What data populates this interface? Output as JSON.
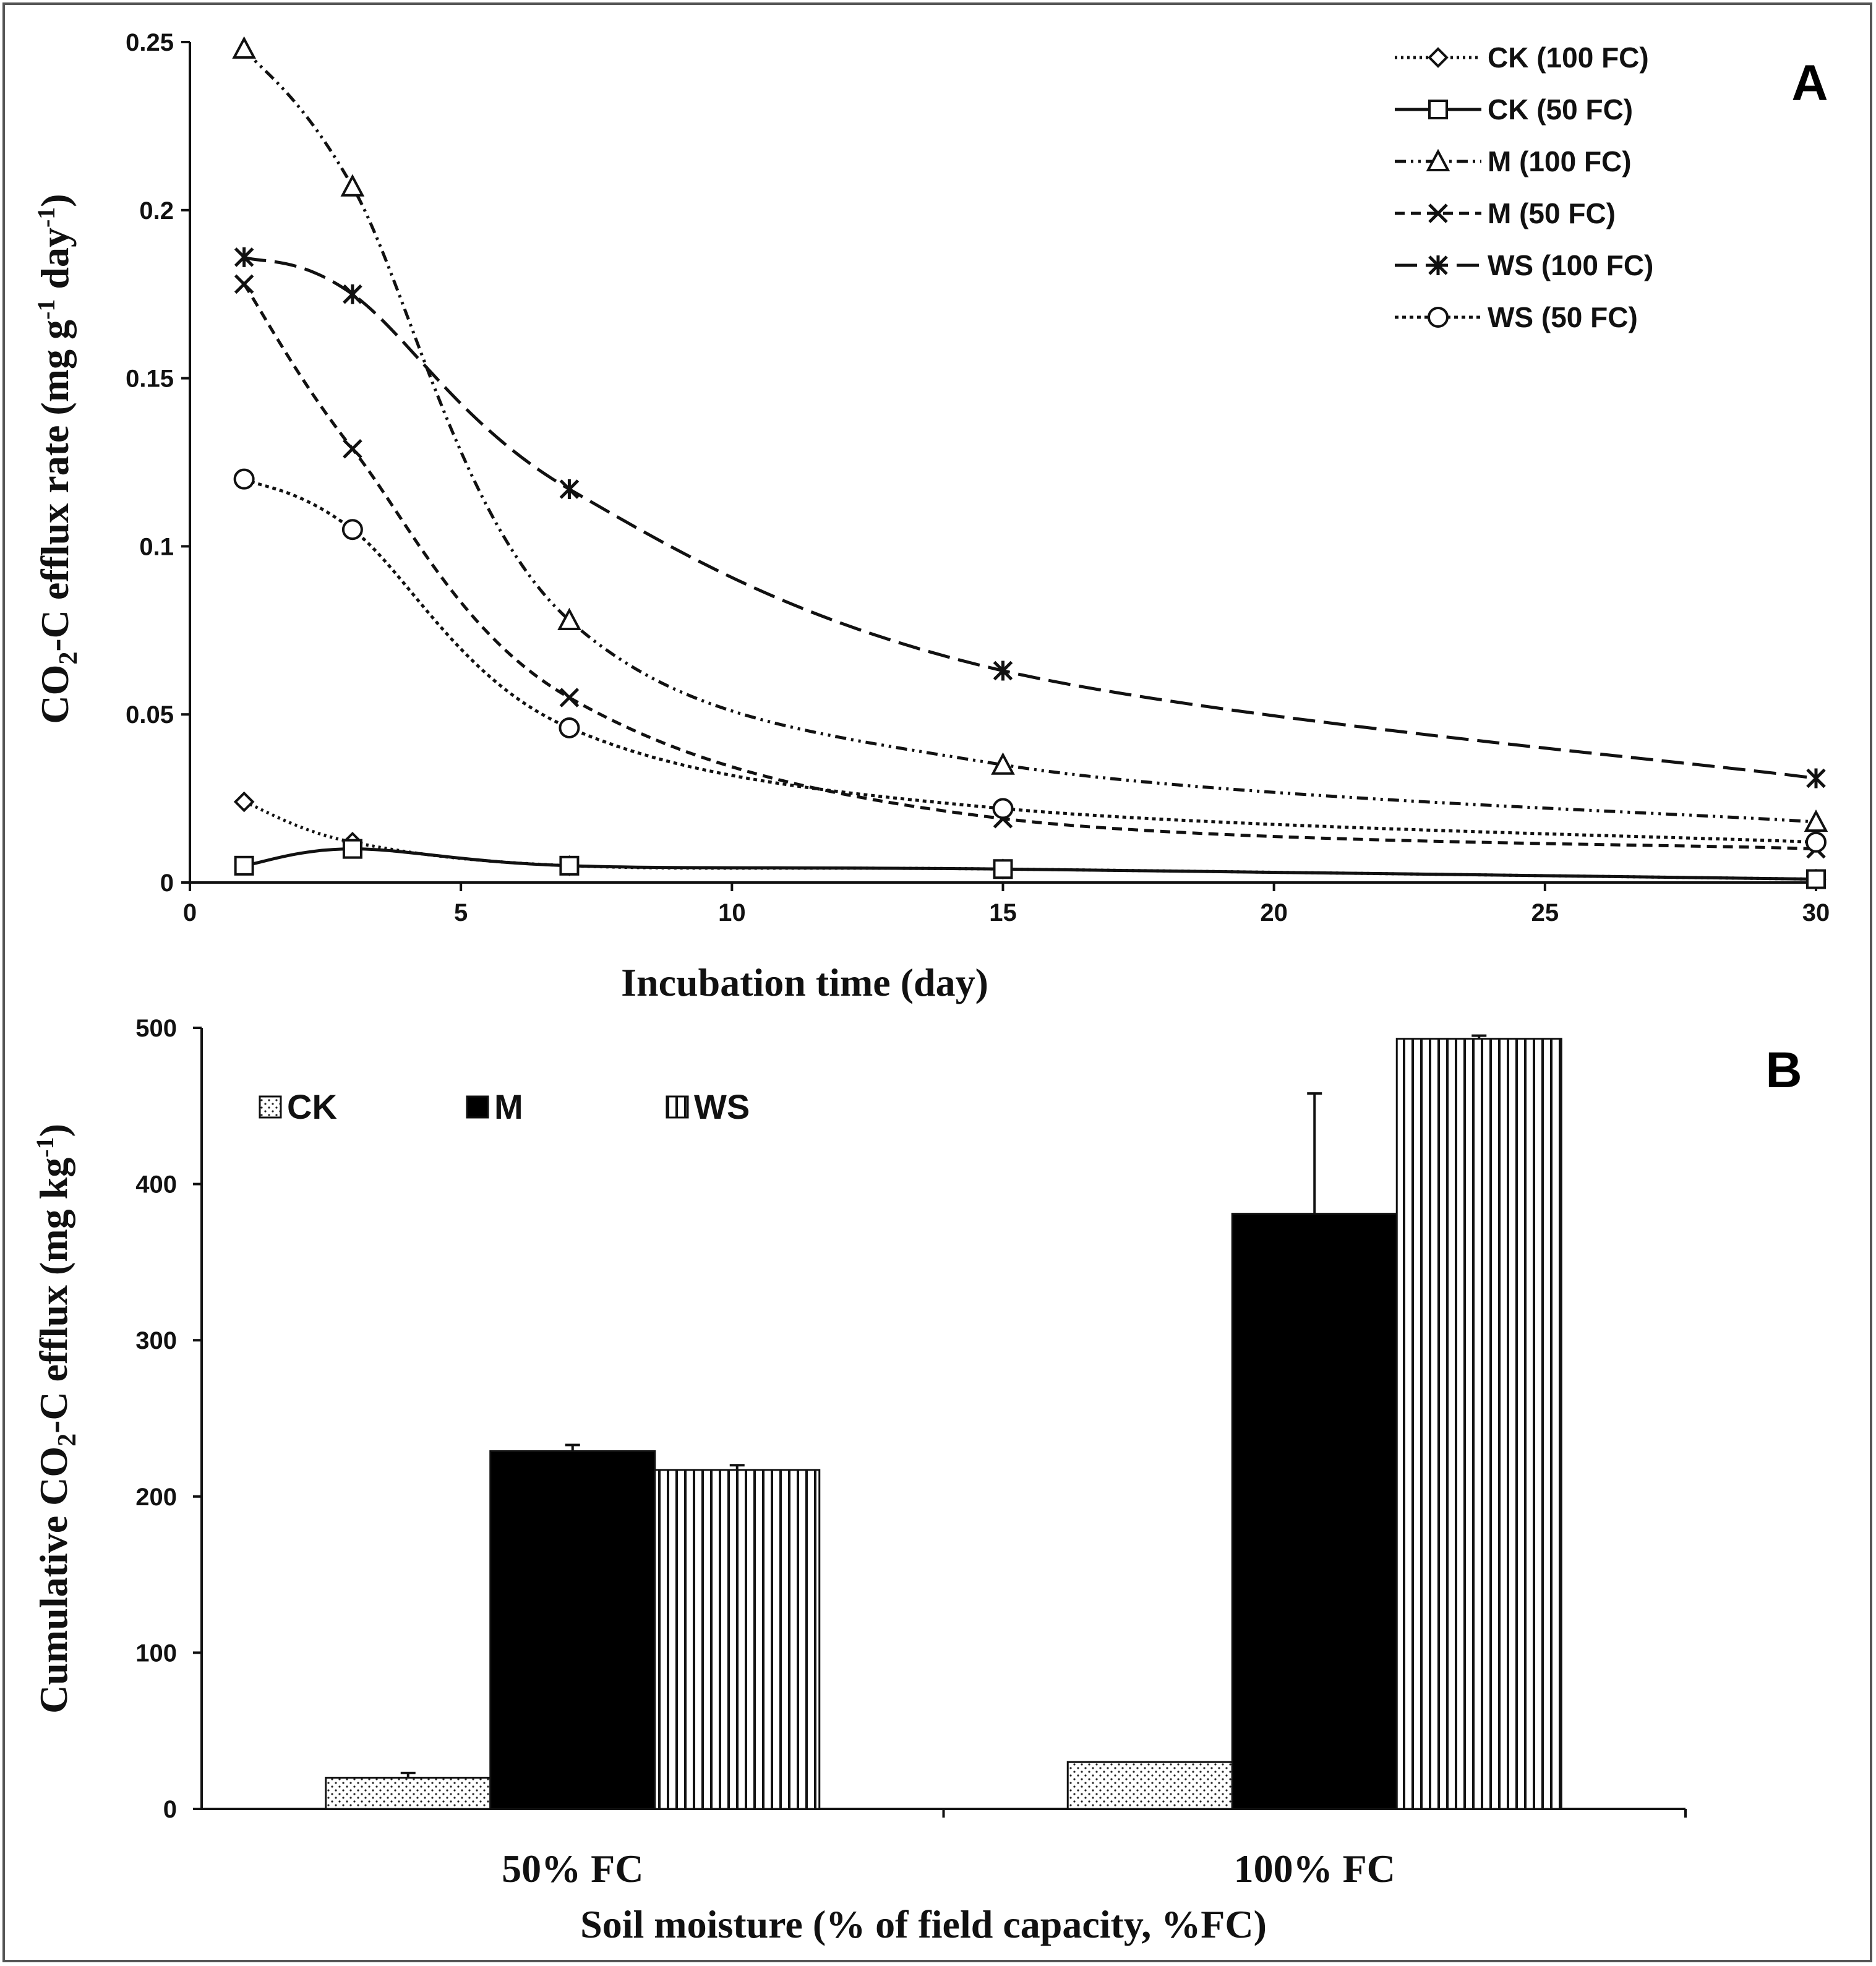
{
  "chart_data": [
    {
      "type": "line",
      "panel": "A",
      "xlabel": "Incubation time (day)",
      "ylabel": "CO2-C efflux rate (mg g-1 day-1)",
      "xlim": [
        0,
        30
      ],
      "ylim": [
        0,
        0.25
      ],
      "x_ticks": [
        "0",
        "5",
        "10",
        "15",
        "20",
        "25",
        "30"
      ],
      "y_ticks": [
        "0",
        "0.05",
        "0.1",
        "0.15",
        "0.2",
        "0.25"
      ],
      "x": [
        1,
        3,
        7,
        15,
        30
      ],
      "legend_position": "top-right",
      "grid": false,
      "series": [
        {
          "name": "CK (100 FC)",
          "marker": "diamond",
          "dash": "4 6",
          "values": [
            0.024,
            0.012,
            0.005,
            0.004,
            0.001
          ]
        },
        {
          "name": "CK (50 FC)",
          "marker": "square",
          "dash": "",
          "values": [
            0.005,
            0.01,
            0.005,
            0.004,
            0.001
          ]
        },
        {
          "name": "M (100 FC)",
          "marker": "triangle",
          "dash": "18 8 4 8 4 8",
          "values": [
            0.248,
            0.207,
            0.078,
            0.035,
            0.018
          ]
        },
        {
          "name": "M (50 FC)",
          "marker": "x",
          "dash": "16 10",
          "values": [
            0.178,
            0.129,
            0.055,
            0.019,
            0.01
          ]
        },
        {
          "name": "WS (100 FC)",
          "marker": "star",
          "dash": "36 14",
          "values": [
            0.186,
            0.175,
            0.117,
            0.063,
            0.031
          ]
        },
        {
          "name": "WS (50 FC)",
          "marker": "circle",
          "dash": "6 6",
          "values": [
            0.12,
            0.105,
            0.046,
            0.022,
            0.012
          ]
        }
      ]
    },
    {
      "type": "bar",
      "panel": "B",
      "xlabel": "Soil moisture (% of field capacity, %FC)",
      "ylabel": "Cumulative CO2-C efflux (mg kg-1)",
      "categories": [
        "50% FC",
        "100% FC"
      ],
      "ylim": [
        0,
        500
      ],
      "y_ticks": [
        "0",
        "100",
        "200",
        "300",
        "400",
        "500"
      ],
      "legend_position": "top-left",
      "grid": false,
      "series": [
        {
          "name": "CK",
          "fill": "dots",
          "values": [
            20,
            30
          ],
          "errors": [
            3,
            0
          ]
        },
        {
          "name": "M",
          "fill": "black",
          "values": [
            229,
            381
          ],
          "errors": [
            4,
            77
          ]
        },
        {
          "name": "WS",
          "fill": "vertical-stripes",
          "values": [
            217,
            493
          ],
          "errors": [
            3,
            2
          ]
        }
      ]
    }
  ],
  "labels": {
    "panel_a": "A",
    "panel_b": "B",
    "a_ylabel_pre": "CO",
    "a_ylabel_sub": "2",
    "a_ylabel_mid": "-C efflux rate (mg g",
    "a_ylabel_sup1": "-1",
    "a_ylabel_mid2": " day",
    "a_ylabel_sup2": "-1",
    "a_ylabel_end": ")",
    "b_ylabel_pre": "Cumulative CO",
    "b_ylabel_sub": "2",
    "b_ylabel_mid": "-C efflux (mg kg",
    "b_ylabel_sup": "-1",
    "b_ylabel_end": ")"
  },
  "colors": {
    "ink": "#111111",
    "frame": "#555555",
    "bar_black": "#000000"
  }
}
